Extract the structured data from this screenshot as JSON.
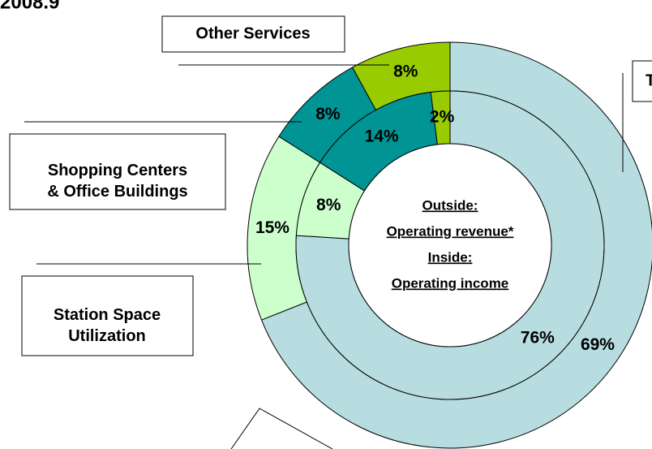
{
  "chart_data": {
    "type": "nested-donut",
    "title": "2008.9",
    "categories": [
      "T",
      "Station Space Utilization",
      "Shopping Centers & Office Buildings",
      "Other Services"
    ],
    "colors": [
      "#b7dde0",
      "#ccffcc",
      "#009494",
      "#99cc00"
    ],
    "center_text": [
      "Outside:",
      "Operating revenue*",
      "Inside:",
      "Operating income"
    ],
    "series": [
      {
        "ring": "outer",
        "values": [
          69,
          15,
          8,
          8
        ],
        "value_labels": [
          "69%",
          "15%",
          "8%",
          "8%"
        ]
      },
      {
        "ring": "inner",
        "values": [
          76,
          8,
          14,
          2
        ],
        "value_labels": [
          "76%",
          "8%",
          "14%",
          "2%"
        ]
      }
    ]
  }
}
